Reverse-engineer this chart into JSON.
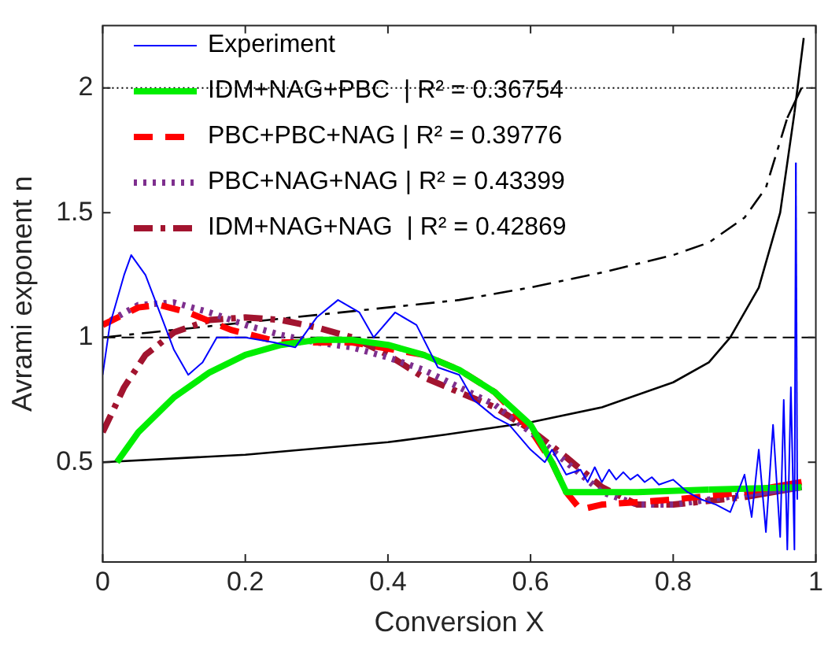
{
  "chart_data": {
    "type": "line",
    "xlabel": "Conversion X",
    "ylabel": "Avrami exponent n",
    "xlim": [
      0,
      1
    ],
    "ylim": [
      0.1,
      2.25
    ],
    "xticks": [
      0,
      0.2,
      0.4,
      0.6,
      0.8,
      1
    ],
    "yticks": [
      0.5,
      1,
      1.5,
      2
    ],
    "grid": false,
    "legend": "top left",
    "marker": "none",
    "ref_lines": [
      {
        "axis": "y",
        "value": 1,
        "color": "#000000",
        "line_style": "dashed"
      },
      {
        "axis": "y",
        "value": 2,
        "color": "#000000",
        "line_style": "dotted"
      }
    ],
    "series": [
      {
        "name": "Experiment",
        "color": "#0000ff",
        "line_style": "solid",
        "x": [
          0,
          0.01,
          0.03,
          0.04,
          0.06,
          0.08,
          0.1,
          0.12,
          0.14,
          0.16,
          0.2,
          0.24,
          0.27,
          0.3,
          0.33,
          0.36,
          0.38,
          0.41,
          0.44,
          0.47,
          0.5,
          0.52,
          0.55,
          0.57,
          0.6,
          0.62,
          0.63,
          0.65,
          0.67,
          0.68,
          0.69,
          0.7,
          0.71,
          0.72,
          0.73,
          0.74,
          0.75,
          0.76,
          0.77,
          0.78,
          0.8,
          0.82,
          0.84,
          0.86,
          0.88,
          0.9,
          0.91,
          0.92,
          0.93,
          0.94,
          0.95,
          0.955,
          0.96,
          0.965,
          0.97,
          0.972,
          0.974
        ],
        "values": [
          0.85,
          1.05,
          1.25,
          1.33,
          1.25,
          1.1,
          0.95,
          0.85,
          0.9,
          1.0,
          1.0,
          0.98,
          0.96,
          1.08,
          1.15,
          1.1,
          1.0,
          1.1,
          1.05,
          0.88,
          0.85,
          0.75,
          0.68,
          0.65,
          0.55,
          0.5,
          0.55,
          0.45,
          0.47,
          0.42,
          0.48,
          0.42,
          0.47,
          0.43,
          0.46,
          0.43,
          0.45,
          0.42,
          0.44,
          0.41,
          0.43,
          0.38,
          0.35,
          0.33,
          0.3,
          0.45,
          0.28,
          0.55,
          0.22,
          0.65,
          0.2,
          0.75,
          0.15,
          0.8,
          0.15,
          1.7,
          0.35
        ]
      },
      {
        "name": "IDM+NAG+PBC  | R² = 0.36754",
        "color": "#00ee00",
        "line_style": "solid",
        "x": [
          0.02,
          0.05,
          0.1,
          0.15,
          0.2,
          0.25,
          0.3,
          0.35,
          0.4,
          0.45,
          0.5,
          0.55,
          0.6,
          0.63,
          0.65,
          0.75,
          0.85,
          0.98
        ],
        "values": [
          0.5,
          0.62,
          0.76,
          0.86,
          0.93,
          0.97,
          0.99,
          0.99,
          0.97,
          0.93,
          0.87,
          0.78,
          0.65,
          0.5,
          0.38,
          0.38,
          0.39,
          0.4
        ]
      },
      {
        "name": "PBC+PBC+NAG | R² = 0.39776",
        "color": "#ff0000",
        "line_style": "dashed",
        "x": [
          0,
          0.05,
          0.08,
          0.12,
          0.18,
          0.25,
          0.3,
          0.35,
          0.45,
          0.5,
          0.55,
          0.6,
          0.63,
          0.65,
          0.67,
          0.7,
          0.8,
          0.9,
          0.98
        ],
        "values": [
          1.05,
          1.12,
          1.13,
          1.1,
          1.03,
          0.98,
          0.98,
          0.98,
          0.93,
          0.87,
          0.78,
          0.63,
          0.5,
          0.38,
          0.31,
          0.33,
          0.35,
          0.38,
          0.42
        ]
      },
      {
        "name": "PBC+NAG+NAG | R² = 0.43399",
        "color": "#7e2f8e",
        "line_style": "dotted",
        "x": [
          0,
          0.05,
          0.1,
          0.15,
          0.2,
          0.25,
          0.3,
          0.35,
          0.4,
          0.45,
          0.5,
          0.55,
          0.6,
          0.65,
          0.7,
          0.75,
          0.8,
          0.9,
          0.98
        ],
        "values": [
          1.05,
          1.13,
          1.14,
          1.1,
          1.05,
          1.01,
          0.98,
          0.96,
          0.92,
          0.87,
          0.8,
          0.73,
          0.62,
          0.5,
          0.38,
          0.33,
          0.33,
          0.37,
          0.4
        ]
      },
      {
        "name": "IDM+NAG+NAG  | R² = 0.42869",
        "color": "#a2142f",
        "line_style": "dashdot",
        "x": [
          0,
          0.03,
          0.06,
          0.1,
          0.15,
          0.2,
          0.25,
          0.3,
          0.35,
          0.4,
          0.45,
          0.5,
          0.55,
          0.6,
          0.65,
          0.7,
          0.75,
          0.8,
          0.9,
          0.98
        ],
        "values": [
          0.62,
          0.8,
          0.93,
          1.02,
          1.07,
          1.08,
          1.07,
          1.04,
          1.0,
          0.93,
          0.84,
          0.78,
          0.72,
          0.63,
          0.52,
          0.4,
          0.33,
          0.33,
          0.36,
          0.4
        ]
      },
      {
        "color": "#000000",
        "line_style": "solid",
        "x": [
          0,
          0.2,
          0.4,
          0.48,
          0.6,
          0.7,
          0.8,
          0.85,
          0.88,
          0.92,
          0.95,
          0.97,
          0.983
        ],
        "values": [
          0.5,
          0.53,
          0.58,
          0.61,
          0.66,
          0.72,
          0.82,
          0.9,
          1.0,
          1.2,
          1.5,
          1.9,
          2.2
        ]
      },
      {
        "color": "#000000",
        "line_style": "dashdot",
        "x": [
          0,
          0.1,
          0.2,
          0.3,
          0.4,
          0.5,
          0.6,
          0.7,
          0.8,
          0.85,
          0.9,
          0.93,
          0.96,
          0.98
        ],
        "values": [
          1.0,
          1.03,
          1.06,
          1.09,
          1.12,
          1.15,
          1.2,
          1.26,
          1.33,
          1.38,
          1.48,
          1.6,
          1.88,
          2.0
        ]
      }
    ]
  }
}
